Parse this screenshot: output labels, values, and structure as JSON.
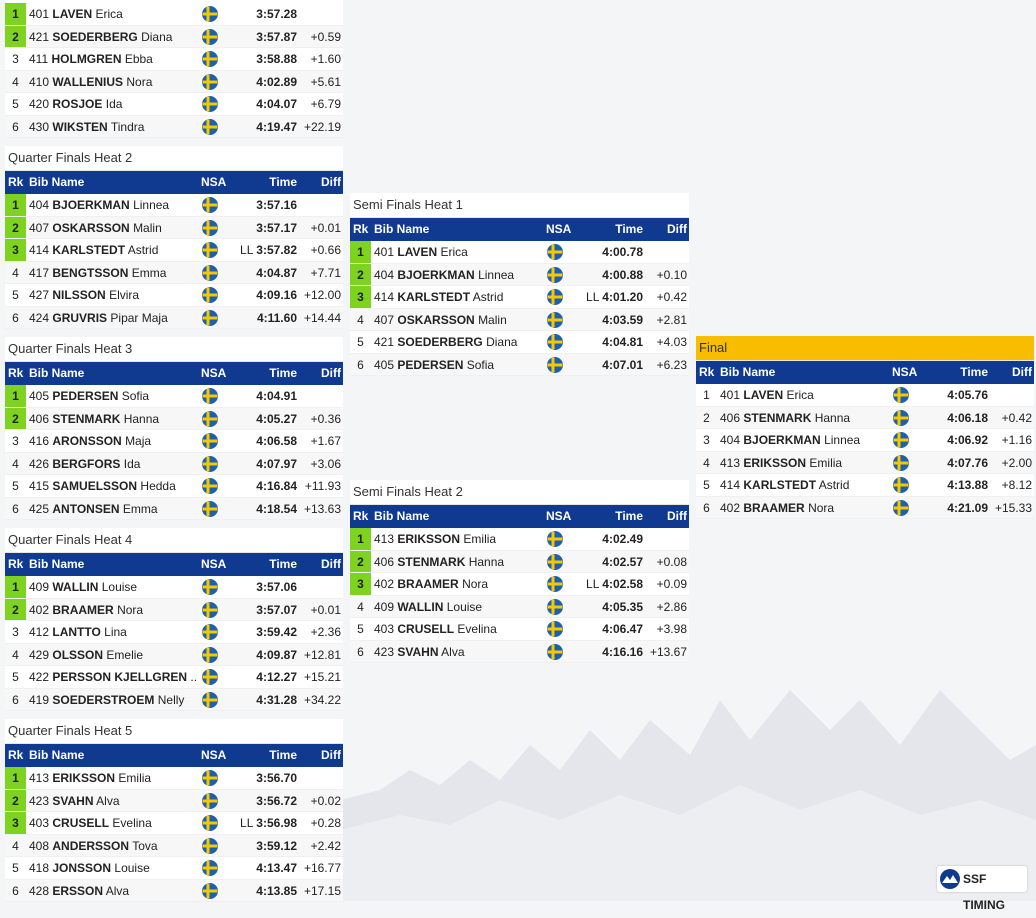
{
  "columns": {
    "rank": "Rk",
    "bibname": "Bib Name",
    "nsa": "NSA",
    "time": "Time",
    "diff": "Diff"
  },
  "heats": [
    {
      "rows": [
        {
          "rank": 1,
          "bib": 401,
          "last": "LAVEN",
          "first": "Erica",
          "time": "3:57.28",
          "qualified": true
        },
        {
          "rank": 2,
          "bib": 421,
          "last": "SOEDERBERG",
          "first": "Diana",
          "time": "3:57.87",
          "diff": "+0.59",
          "qualified": true
        },
        {
          "rank": 3,
          "bib": 411,
          "last": "HOLMGREN",
          "first": "Ebba",
          "time": "3:58.88",
          "diff": "+1.60"
        },
        {
          "rank": 4,
          "bib": 410,
          "last": "WALLENIUS",
          "first": "Nora",
          "time": "4:02.89",
          "diff": "+5.61"
        },
        {
          "rank": 5,
          "bib": 420,
          "last": "ROSJOE",
          "first": "Ida",
          "time": "4:04.07",
          "diff": "+6.79"
        },
        {
          "rank": 6,
          "bib": 430,
          "last": "WIKSTEN",
          "first": "Tindra",
          "time": "4:19.47",
          "diff": "+22.19"
        }
      ]
    },
    {
      "title": "Quarter Finals Heat 2",
      "rows": [
        {
          "rank": 1,
          "bib": 404,
          "last": "BJOERKMAN",
          "first": "Linnea",
          "time": "3:57.16",
          "qualified": true
        },
        {
          "rank": 2,
          "bib": 407,
          "last": "OSKARSSON",
          "first": "Malin",
          "time": "3:57.17",
          "diff": "+0.01",
          "qualified": true
        },
        {
          "rank": 3,
          "bib": 414,
          "last": "KARLSTEDT",
          "first": "Astrid",
          "note": "LL",
          "time": "3:57.82",
          "diff": "+0.66",
          "qualified": true
        },
        {
          "rank": 4,
          "bib": 417,
          "last": "BENGTSSON",
          "first": "Emma",
          "time": "4:04.87",
          "diff": "+7.71"
        },
        {
          "rank": 5,
          "bib": 427,
          "last": "NILSSON",
          "first": "Elvira",
          "time": "4:09.16",
          "diff": "+12.00"
        },
        {
          "rank": 6,
          "bib": 424,
          "last": "GRUVRIS",
          "first": "Pipar Maja",
          "time": "4:11.60",
          "diff": "+14.44"
        }
      ]
    },
    {
      "title": "Quarter Finals Heat 3",
      "rows": [
        {
          "rank": 1,
          "bib": 405,
          "last": "PEDERSEN",
          "first": "Sofia",
          "time": "4:04.91",
          "qualified": true
        },
        {
          "rank": 2,
          "bib": 406,
          "last": "STENMARK",
          "first": "Hanna",
          "time": "4:05.27",
          "diff": "+0.36",
          "qualified": true
        },
        {
          "rank": 3,
          "bib": 416,
          "last": "ARONSSON",
          "first": "Maja",
          "time": "4:06.58",
          "diff": "+1.67"
        },
        {
          "rank": 4,
          "bib": 426,
          "last": "BERGFORS",
          "first": "Ida",
          "time": "4:07.97",
          "diff": "+3.06"
        },
        {
          "rank": 5,
          "bib": 415,
          "last": "SAMUELSSON",
          "first": "Hedda",
          "time": "4:16.84",
          "diff": "+11.93"
        },
        {
          "rank": 6,
          "bib": 425,
          "last": "ANTONSEN",
          "first": "Emma",
          "time": "4:18.54",
          "diff": "+13.63"
        }
      ]
    },
    {
      "title": "Quarter Finals Heat 4",
      "rows": [
        {
          "rank": 1,
          "bib": 409,
          "last": "WALLIN",
          "first": "Louise",
          "time": "3:57.06",
          "qualified": true
        },
        {
          "rank": 2,
          "bib": 402,
          "last": "BRAAMER",
          "first": "Nora",
          "time": "3:57.07",
          "diff": "+0.01",
          "qualified": true
        },
        {
          "rank": 3,
          "bib": 412,
          "last": "LANTTO",
          "first": "Lina",
          "time": "3:59.42",
          "diff": "+2.36"
        },
        {
          "rank": 4,
          "bib": 429,
          "last": "OLSSON",
          "first": "Emelie",
          "time": "4:09.87",
          "diff": "+12.81"
        },
        {
          "rank": 5,
          "bib": 422,
          "last": "PERSSON KJELLGREN",
          "first": "...",
          "time": "4:12.27",
          "diff": "+15.21"
        },
        {
          "rank": 6,
          "bib": 419,
          "last": "SOEDERSTROEM",
          "first": "Nelly",
          "time": "4:31.28",
          "diff": "+34.22"
        }
      ]
    },
    {
      "title": "Quarter Finals Heat 5",
      "rows": [
        {
          "rank": 1,
          "bib": 413,
          "last": "ERIKSSON",
          "first": "Emilia",
          "time": "3:56.70",
          "qualified": true
        },
        {
          "rank": 2,
          "bib": 423,
          "last": "SVAHN",
          "first": "Alva",
          "time": "3:56.72",
          "diff": "+0.02",
          "qualified": true
        },
        {
          "rank": 3,
          "bib": 403,
          "last": "CRUSELL",
          "first": "Evelina",
          "note": "LL",
          "time": "3:56.98",
          "diff": "+0.28",
          "qualified": true
        },
        {
          "rank": 4,
          "bib": 408,
          "last": "ANDERSSON",
          "first": "Tova",
          "time": "3:59.12",
          "diff": "+2.42"
        },
        {
          "rank": 5,
          "bib": 418,
          "last": "JONSSON",
          "first": "Louise",
          "time": "4:13.47",
          "diff": "+16.77"
        },
        {
          "rank": 6,
          "bib": 428,
          "last": "ERSSON",
          "first": "Alva",
          "time": "4:13.85",
          "diff": "+17.15"
        }
      ]
    },
    {
      "title": "Semi Finals Heat 1",
      "rows": [
        {
          "rank": 1,
          "bib": 401,
          "last": "LAVEN",
          "first": "Erica",
          "time": "4:00.78",
          "qualified": true
        },
        {
          "rank": 2,
          "bib": 404,
          "last": "BJOERKMAN",
          "first": "Linnea",
          "time": "4:00.88",
          "diff": "+0.10",
          "qualified": true
        },
        {
          "rank": 3,
          "bib": 414,
          "last": "KARLSTEDT",
          "first": "Astrid",
          "note": "LL",
          "time": "4:01.20",
          "diff": "+0.42",
          "qualified": true
        },
        {
          "rank": 4,
          "bib": 407,
          "last": "OSKARSSON",
          "first": "Malin",
          "time": "4:03.59",
          "diff": "+2.81"
        },
        {
          "rank": 5,
          "bib": 421,
          "last": "SOEDERBERG",
          "first": "Diana",
          "time": "4:04.81",
          "diff": "+4.03"
        },
        {
          "rank": 6,
          "bib": 405,
          "last": "PEDERSEN",
          "first": "Sofia",
          "time": "4:07.01",
          "diff": "+6.23"
        }
      ]
    },
    {
      "title": "Semi Finals Heat 2",
      "rows": [
        {
          "rank": 1,
          "bib": 413,
          "last": "ERIKSSON",
          "first": "Emilia",
          "time": "4:02.49",
          "qualified": true
        },
        {
          "rank": 2,
          "bib": 406,
          "last": "STENMARK",
          "first": "Hanna",
          "time": "4:02.57",
          "diff": "+0.08",
          "qualified": true
        },
        {
          "rank": 3,
          "bib": 402,
          "last": "BRAAMER",
          "first": "Nora",
          "note": "LL",
          "time": "4:02.58",
          "diff": "+0.09",
          "qualified": true
        },
        {
          "rank": 4,
          "bib": 409,
          "last": "WALLIN",
          "first": "Louise",
          "time": "4:05.35",
          "diff": "+2.86"
        },
        {
          "rank": 5,
          "bib": 403,
          "last": "CRUSELL",
          "first": "Evelina",
          "time": "4:06.47",
          "diff": "+3.98"
        },
        {
          "rank": 6,
          "bib": 423,
          "last": "SVAHN",
          "first": "Alva",
          "time": "4:16.16",
          "diff": "+13.67"
        }
      ]
    },
    {
      "title": "Final",
      "final": true,
      "rows": [
        {
          "rank": 1,
          "bib": 401,
          "last": "LAVEN",
          "first": "Erica",
          "time": "4:05.76"
        },
        {
          "rank": 2,
          "bib": 406,
          "last": "STENMARK",
          "first": "Hanna",
          "time": "4:06.18",
          "diff": "+0.42"
        },
        {
          "rank": 3,
          "bib": 404,
          "last": "BJOERKMAN",
          "first": "Linnea",
          "time": "4:06.92",
          "diff": "+1.16"
        },
        {
          "rank": 4,
          "bib": 413,
          "last": "ERIKSSON",
          "first": "Emilia",
          "time": "4:07.76",
          "diff": "+2.00"
        },
        {
          "rank": 5,
          "bib": 414,
          "last": "KARLSTEDT",
          "first": "Astrid",
          "time": "4:13.88",
          "diff": "+8.12"
        },
        {
          "rank": 6,
          "bib": 402,
          "last": "BRAAMER",
          "first": "Nora",
          "time": "4:21.09",
          "diff": "+15.33"
        }
      ]
    }
  ],
  "logo": "SSF TIMING"
}
